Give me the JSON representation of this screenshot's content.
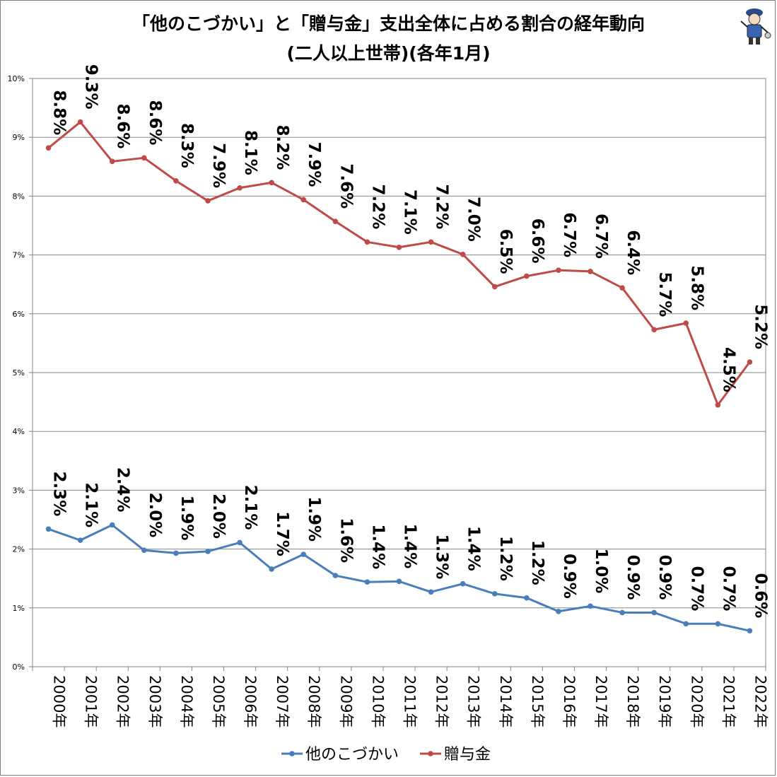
{
  "title_line1": "「他のこづかい」と「贈与金」支出全体に占める割合の経年動向",
  "title_line2": "(二人以上世帯)(各年1月)",
  "chart_data": {
    "type": "line",
    "categories": [
      "2000年",
      "2001年",
      "2002年",
      "2003年",
      "2004年",
      "2005年",
      "2006年",
      "2007年",
      "2008年",
      "2009年",
      "2010年",
      "2011年",
      "2012年",
      "2013年",
      "2014年",
      "2015年",
      "2016年",
      "2017年",
      "2018年",
      "2019年",
      "2020年",
      "2021年",
      "2022年"
    ],
    "ylim": [
      0,
      10
    ],
    "ytick_labels": [
      "0%",
      "1%",
      "2%",
      "3%",
      "4%",
      "5%",
      "6%",
      "7%",
      "8%",
      "9%",
      "10%"
    ],
    "grid": true,
    "legend_position": "bottom",
    "series": [
      {
        "name": "他のこづかい",
        "color": "#4a7ebb",
        "values": [
          2.34,
          2.15,
          2.41,
          1.98,
          1.93,
          1.96,
          2.11,
          1.66,
          1.91,
          1.55,
          1.44,
          1.45,
          1.27,
          1.41,
          1.24,
          1.17,
          0.94,
          1.03,
          0.92,
          0.92,
          0.73,
          0.73,
          0.61
        ],
        "labels": [
          "2.3%",
          "2.1%",
          "2.4%",
          "2.0%",
          "1.9%",
          "2.0%",
          "2.1%",
          "1.7%",
          "1.9%",
          "1.6%",
          "1.4%",
          "1.4%",
          "1.3%",
          "1.4%",
          "1.2%",
          "1.2%",
          "0.9%",
          "1.0%",
          "0.9%",
          "0.9%",
          "0.7%",
          "0.7%",
          "0.6%"
        ]
      },
      {
        "name": "贈与金",
        "color": "#be4b48",
        "values": [
          8.82,
          9.26,
          8.59,
          8.65,
          8.26,
          7.92,
          8.14,
          8.23,
          7.94,
          7.57,
          7.22,
          7.13,
          7.22,
          7.01,
          6.46,
          6.64,
          6.74,
          6.72,
          6.44,
          5.73,
          5.84,
          4.45,
          5.18
        ],
        "labels": [
          "8.8%",
          "9.3%",
          "8.6%",
          "8.6%",
          "8.3%",
          "7.9%",
          "8.1%",
          "8.2%",
          "7.9%",
          "7.6%",
          "7.2%",
          "7.1%",
          "7.2%",
          "7.0%",
          "6.5%",
          "6.6%",
          "6.7%",
          "6.7%",
          "6.4%",
          "5.7%",
          "5.8%",
          "4.5%",
          "5.2%"
        ]
      }
    ]
  },
  "mascot_icon": "mascot-icon"
}
